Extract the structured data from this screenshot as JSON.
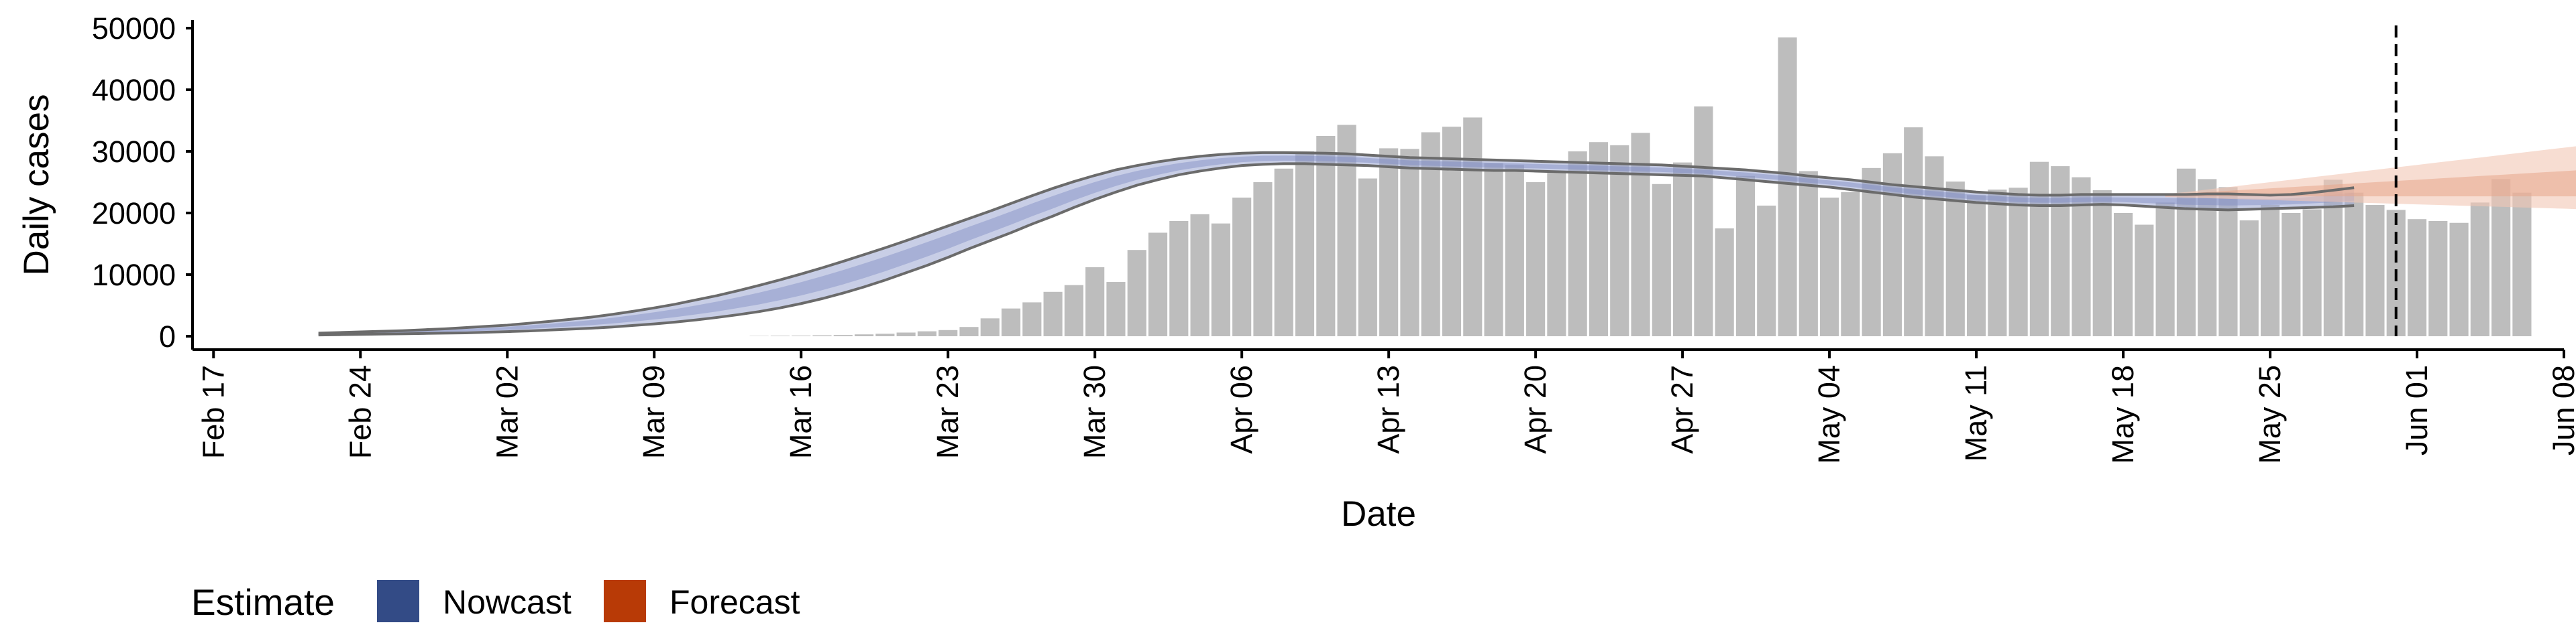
{
  "chart_data": {
    "type": "bar",
    "title": "",
    "xlabel": "Date",
    "ylabel": "Daily cases",
    "ylim": [
      0,
      50000
    ],
    "y_ticks": [
      0,
      10000,
      20000,
      30000,
      40000,
      50000
    ],
    "y_tick_labels": [
      "0",
      "10000",
      "20000",
      "30000",
      "40000",
      "50000"
    ],
    "x_ticks": [
      {
        "label": "Feb 17",
        "date": "2020-02-17"
      },
      {
        "label": "Feb 24",
        "date": "2020-02-24"
      },
      {
        "label": "Mar 02",
        "date": "2020-03-02"
      },
      {
        "label": "Mar 09",
        "date": "2020-03-09"
      },
      {
        "label": "Mar 16",
        "date": "2020-03-16"
      },
      {
        "label": "Mar 23",
        "date": "2020-03-23"
      },
      {
        "label": "Mar 30",
        "date": "2020-03-30"
      },
      {
        "label": "Apr 06",
        "date": "2020-04-06"
      },
      {
        "label": "Apr 13",
        "date": "2020-04-13"
      },
      {
        "label": "Apr 20",
        "date": "2020-04-20"
      },
      {
        "label": "Apr 27",
        "date": "2020-04-27"
      },
      {
        "label": "May 04",
        "date": "2020-05-04"
      },
      {
        "label": "May 11",
        "date": "2020-05-11"
      },
      {
        "label": "May 18",
        "date": "2020-05-18"
      },
      {
        "label": "May 25",
        "date": "2020-05-25"
      },
      {
        "label": "Jun 01",
        "date": "2020-06-01"
      },
      {
        "label": "Jun 08",
        "date": "2020-06-08"
      }
    ],
    "xlim": [
      "2020-02-16",
      "2020-06-08"
    ],
    "bars": {
      "start_date": "2020-02-22",
      "color": "#bdbdbd",
      "values": [
        0,
        0,
        0,
        0,
        0,
        0,
        0,
        0,
        0,
        0,
        0,
        0,
        0,
        0,
        0,
        0,
        0,
        0,
        0,
        0,
        0,
        50,
        80,
        100,
        150,
        200,
        300,
        400,
        600,
        800,
        1000,
        1500,
        2900,
        4500,
        5500,
        7200,
        8300,
        11200,
        8800,
        14000,
        16800,
        18700,
        19800,
        18300,
        22500,
        25000,
        27200,
        30000,
        32500,
        34300,
        25600,
        30500,
        30400,
        33100,
        34000,
        35500,
        28100,
        27800,
        25000,
        26500,
        30000,
        31500,
        31000,
        33000,
        24700,
        28200,
        37300,
        17500,
        26000,
        21200,
        48500,
        26800,
        22500,
        23400,
        27300,
        29700,
        33900,
        29200,
        25100,
        22900,
        23800,
        24100,
        28300,
        27600,
        25800,
        23700,
        20000,
        18100,
        21700,
        27200,
        25500,
        24200,
        18800,
        21300,
        20000,
        20600,
        25400,
        23300,
        21300,
        20500,
        19000,
        18700,
        18400,
        21700,
        25500,
        23300
      ]
    },
    "series": [
      {
        "name": "Nowcast",
        "kind": "band",
        "color": "#3b4a8a",
        "start_date": "2020-02-22",
        "upper": [
          500,
          600,
          700,
          800,
          900,
          1050,
          1200,
          1400,
          1600,
          1800,
          2100,
          2400,
          2750,
          3100,
          3550,
          4050,
          4600,
          5200,
          5900,
          6600,
          7400,
          8250,
          9150,
          10100,
          11100,
          12150,
          13250,
          14350,
          15500,
          16700,
          17900,
          19100,
          20300,
          21550,
          22800,
          24000,
          25100,
          26100,
          27000,
          27700,
          28300,
          28800,
          29200,
          29500,
          29700,
          29800,
          29800,
          29750,
          29700,
          29600,
          29400,
          29200,
          29000,
          28900,
          28800,
          28700,
          28600,
          28500,
          28400,
          28300,
          28200,
          28100,
          28000,
          27900,
          27800,
          27600,
          27400,
          27200,
          27000,
          26700,
          26400,
          26000,
          25700,
          25400,
          25000,
          24600,
          24300,
          24000,
          23700,
          23400,
          23200,
          23000,
          22900,
          22900,
          23000,
          23000,
          23000,
          23000,
          23000,
          23000,
          23100,
          23100,
          23000,
          22900,
          23000,
          23300,
          23700,
          24100
        ],
        "lower": [
          200,
          250,
          300,
          350,
          400,
          450,
          500,
          550,
          650,
          750,
          850,
          1000,
          1150,
          1300,
          1500,
          1750,
          2000,
          2300,
          2650,
          3050,
          3500,
          4000,
          4600,
          5300,
          6100,
          7000,
          8000,
          9100,
          10300,
          11500,
          12800,
          14200,
          15500,
          16800,
          18200,
          19500,
          20900,
          22200,
          23400,
          24500,
          25400,
          26200,
          26800,
          27300,
          27700,
          27900,
          28000,
          28000,
          27900,
          27800,
          27700,
          27500,
          27300,
          27200,
          27100,
          27000,
          26900,
          26900,
          26800,
          26700,
          26600,
          26500,
          26400,
          26300,
          26200,
          26100,
          26000,
          25700,
          25400,
          25100,
          24800,
          24500,
          24200,
          23800,
          23400,
          23000,
          22600,
          22300,
          22000,
          21700,
          21500,
          21300,
          21200,
          21200,
          21300,
          21400,
          21300,
          21100,
          20900,
          20700,
          20600,
          20500,
          20600,
          20700,
          20800,
          20900,
          21000,
          21200
        ]
      },
      {
        "name": "Forecast",
        "kind": "band",
        "color": "#b8400e",
        "start_date": "2020-05-20",
        "outer_upper": [
          23100,
          23400,
          23800,
          24200,
          24600,
          25000,
          25400,
          25800,
          26200,
          26600,
          27000,
          27400,
          27800,
          28200,
          28600,
          29000,
          29400,
          29800,
          30200,
          30600,
          31000,
          31500
        ],
        "outer_lower": [
          22600,
          22500,
          22400,
          22300,
          22200,
          22100,
          22000,
          21900,
          21800,
          21700,
          21600,
          21500,
          21400,
          21300,
          21200,
          21100,
          21000,
          20900,
          20800,
          20700,
          20600,
          20500
        ],
        "inner_upper": [
          23000,
          23200,
          23400,
          23600,
          23800,
          24000,
          24200,
          24400,
          24600,
          24800,
          25000,
          25200,
          25400,
          25600,
          25800,
          26000,
          26200,
          26400,
          26600,
          26800,
          27000,
          27200
        ],
        "inner_lower": [
          22700,
          22700,
          22700,
          22700,
          22700,
          22700,
          22700,
          22700,
          22700,
          22700,
          22700,
          22700,
          22700,
          22700,
          22700,
          22700,
          22700,
          22700,
          22700,
          22700,
          22700,
          22800
        ]
      }
    ],
    "vline": {
      "date": "2020-05-31",
      "style": "dashed"
    },
    "legend": {
      "position": "bottom-left",
      "title": "Estimate",
      "entries": [
        {
          "label": "Nowcast",
          "color": "#334b86"
        },
        {
          "label": "Forecast",
          "color": "#b83a06"
        }
      ]
    },
    "grid": false
  }
}
